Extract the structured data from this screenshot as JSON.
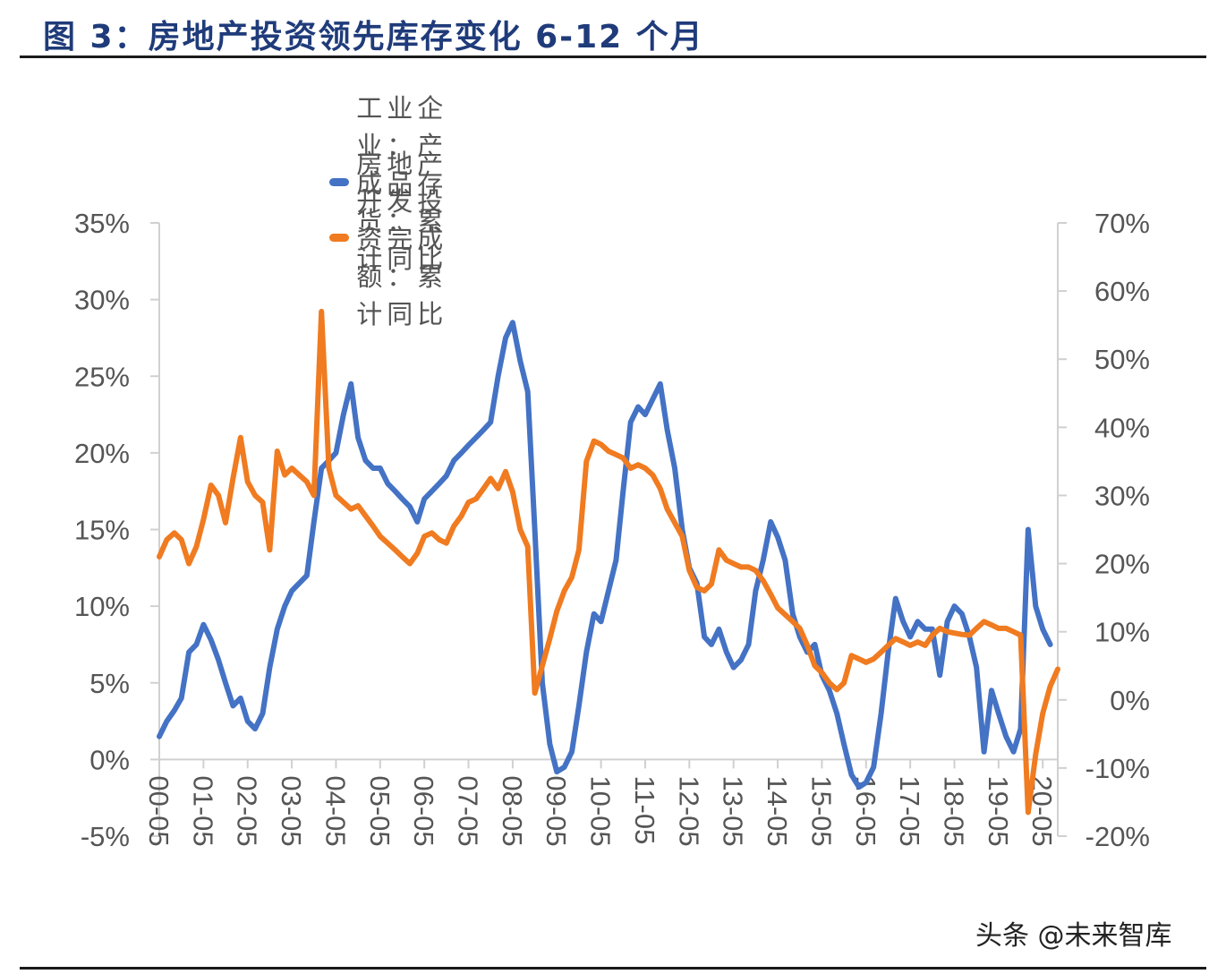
{
  "figure": {
    "title": "图  3：房地产投资领先库存变化 6-12 个月"
  },
  "watermark": "头条 @未来智库",
  "chart_data": {
    "type": "line",
    "title": "图  3：房地产投资领先库存变化 6-12 个月",
    "xlabel": "",
    "ylabel": "",
    "x_tick_labels": [
      "00-05",
      "01-05",
      "02-05",
      "03-05",
      "04-05",
      "05-05",
      "06-05",
      "07-05",
      "08-05",
      "09-05",
      "10-05",
      "11-05",
      "12-05",
      "13-05",
      "14-05",
      "15-05",
      "16-05",
      "17-05",
      "18-05",
      "19-05",
      "20-05"
    ],
    "y_left": {
      "range": [
        -5,
        35
      ],
      "tick_labels": [
        "-5%",
        "0%",
        "5%",
        "10%",
        "15%",
        "20%",
        "25%",
        "30%",
        "35%"
      ]
    },
    "y_right": {
      "range": [
        -20,
        70
      ],
      "tick_labels": [
        "-20%",
        "-10%",
        "0%",
        "10%",
        "20%",
        "30%",
        "40%",
        "50%",
        "60%",
        "70%"
      ]
    },
    "grid": false,
    "legend_position": "top-center",
    "series": [
      {
        "name": "工业企业：产成品存货：累计同比",
        "axis": "left",
        "color": "#4472c4",
        "points": [
          [
            2000.33,
            1.5
          ],
          [
            2000.5,
            2.5
          ],
          [
            2000.67,
            3.2
          ],
          [
            2000.83,
            4.0
          ],
          [
            2001.0,
            7.0
          ],
          [
            2001.17,
            7.5
          ],
          [
            2001.33,
            8.8
          ],
          [
            2001.5,
            7.8
          ],
          [
            2001.67,
            6.5
          ],
          [
            2001.83,
            5.0
          ],
          [
            2002.0,
            3.5
          ],
          [
            2002.17,
            4.0
          ],
          [
            2002.33,
            2.5
          ],
          [
            2002.5,
            2.0
          ],
          [
            2002.67,
            3.0
          ],
          [
            2002.83,
            6.0
          ],
          [
            2003.0,
            8.5
          ],
          [
            2003.17,
            10.0
          ],
          [
            2003.33,
            11.0
          ],
          [
            2003.5,
            11.5
          ],
          [
            2003.67,
            12.0
          ],
          [
            2003.83,
            15.5
          ],
          [
            2004.0,
            19.0
          ],
          [
            2004.17,
            19.5
          ],
          [
            2004.33,
            20.0
          ],
          [
            2004.5,
            22.5
          ],
          [
            2004.67,
            24.5
          ],
          [
            2004.83,
            21.0
          ],
          [
            2005.0,
            19.5
          ],
          [
            2005.17,
            19.0
          ],
          [
            2005.33,
            19.0
          ],
          [
            2005.5,
            18.0
          ],
          [
            2005.67,
            17.5
          ],
          [
            2005.83,
            17.0
          ],
          [
            2006.0,
            16.5
          ],
          [
            2006.17,
            15.5
          ],
          [
            2006.33,
            17.0
          ],
          [
            2006.5,
            17.5
          ],
          [
            2006.67,
            18.0
          ],
          [
            2006.83,
            18.5
          ],
          [
            2007.0,
            19.5
          ],
          [
            2007.17,
            20.0
          ],
          [
            2007.33,
            20.5
          ],
          [
            2007.5,
            21.0
          ],
          [
            2007.67,
            21.5
          ],
          [
            2007.83,
            22.0
          ],
          [
            2008.0,
            25.0
          ],
          [
            2008.17,
            27.5
          ],
          [
            2008.33,
            28.5
          ],
          [
            2008.5,
            26.0
          ],
          [
            2008.67,
            24.0
          ],
          [
            2008.83,
            15.0
          ],
          [
            2009.0,
            5.0
          ],
          [
            2009.17,
            1.0
          ],
          [
            2009.33,
            -0.8
          ],
          [
            2009.5,
            -0.5
          ],
          [
            2009.67,
            0.5
          ],
          [
            2009.83,
            3.5
          ],
          [
            2010.0,
            7.0
          ],
          [
            2010.17,
            9.5
          ],
          [
            2010.33,
            9.0
          ],
          [
            2010.5,
            11.0
          ],
          [
            2010.67,
            13.0
          ],
          [
            2010.83,
            17.5
          ],
          [
            2011.0,
            22.0
          ],
          [
            2011.17,
            23.0
          ],
          [
            2011.33,
            22.5
          ],
          [
            2011.5,
            23.5
          ],
          [
            2011.67,
            24.5
          ],
          [
            2011.83,
            21.5
          ],
          [
            2012.0,
            19.0
          ],
          [
            2012.17,
            15.0
          ],
          [
            2012.33,
            12.5
          ],
          [
            2012.5,
            11.5
          ],
          [
            2012.67,
            8.0
          ],
          [
            2012.83,
            7.5
          ],
          [
            2013.0,
            8.5
          ],
          [
            2013.17,
            7.0
          ],
          [
            2013.33,
            6.0
          ],
          [
            2013.5,
            6.5
          ],
          [
            2013.67,
            7.5
          ],
          [
            2013.83,
            11.0
          ],
          [
            2014.0,
            13.0
          ],
          [
            2014.17,
            15.5
          ],
          [
            2014.33,
            14.5
          ],
          [
            2014.5,
            13.0
          ],
          [
            2014.67,
            9.5
          ],
          [
            2014.83,
            8.0
          ],
          [
            2015.0,
            7.0
          ],
          [
            2015.17,
            7.5
          ],
          [
            2015.33,
            5.5
          ],
          [
            2015.5,
            4.5
          ],
          [
            2015.67,
            3.0
          ],
          [
            2015.83,
            1.0
          ],
          [
            2016.0,
            -1.0
          ],
          [
            2016.17,
            -1.8
          ],
          [
            2016.33,
            -1.5
          ],
          [
            2016.5,
            -0.5
          ],
          [
            2016.67,
            3.0
          ],
          [
            2016.83,
            7.0
          ],
          [
            2017.0,
            10.5
          ],
          [
            2017.17,
            9.0
          ],
          [
            2017.33,
            8.0
          ],
          [
            2017.5,
            9.0
          ],
          [
            2017.67,
            8.5
          ],
          [
            2017.83,
            8.5
          ],
          [
            2018.0,
            5.5
          ],
          [
            2018.17,
            9.0
          ],
          [
            2018.33,
            10.0
          ],
          [
            2018.5,
            9.5
          ],
          [
            2018.67,
            8.0
          ],
          [
            2018.83,
            6.0
          ],
          [
            2019.0,
            0.5
          ],
          [
            2019.17,
            4.5
          ],
          [
            2019.33,
            3.0
          ],
          [
            2019.5,
            1.5
          ],
          [
            2019.67,
            0.5
          ],
          [
            2019.83,
            2.0
          ],
          [
            2020.0,
            15.0
          ],
          [
            2020.17,
            10.0
          ],
          [
            2020.33,
            8.5
          ],
          [
            2020.5,
            7.5
          ]
        ]
      },
      {
        "name": "房地产开发投资完成额：累计同比",
        "axis": "right",
        "color": "#f07b20",
        "points": [
          [
            2000.33,
            21.0
          ],
          [
            2000.5,
            23.5
          ],
          [
            2000.67,
            24.5
          ],
          [
            2000.83,
            23.5
          ],
          [
            2001.0,
            20.0
          ],
          [
            2001.17,
            22.5
          ],
          [
            2001.33,
            26.5
          ],
          [
            2001.5,
            31.5
          ],
          [
            2001.67,
            30.0
          ],
          [
            2001.83,
            26.0
          ],
          [
            2002.0,
            32.5
          ],
          [
            2002.17,
            38.5
          ],
          [
            2002.33,
            32.0
          ],
          [
            2002.5,
            30.0
          ],
          [
            2002.67,
            29.0
          ],
          [
            2002.83,
            22.0
          ],
          [
            2003.0,
            36.5
          ],
          [
            2003.17,
            33.0
          ],
          [
            2003.33,
            34.0
          ],
          [
            2003.5,
            33.0
          ],
          [
            2003.67,
            32.0
          ],
          [
            2003.83,
            30.0
          ],
          [
            2004.0,
            57.0
          ],
          [
            2004.17,
            34.0
          ],
          [
            2004.33,
            30.0
          ],
          [
            2004.5,
            29.0
          ],
          [
            2004.67,
            28.0
          ],
          [
            2004.83,
            28.5
          ],
          [
            2005.0,
            27.0
          ],
          [
            2005.17,
            25.5
          ],
          [
            2005.33,
            24.0
          ],
          [
            2005.5,
            23.0
          ],
          [
            2005.67,
            22.0
          ],
          [
            2005.83,
            21.0
          ],
          [
            2006.0,
            20.0
          ],
          [
            2006.17,
            21.5
          ],
          [
            2006.33,
            24.0
          ],
          [
            2006.5,
            24.5
          ],
          [
            2006.67,
            23.5
          ],
          [
            2006.83,
            23.0
          ],
          [
            2007.0,
            25.5
          ],
          [
            2007.17,
            27.0
          ],
          [
            2007.33,
            29.0
          ],
          [
            2007.5,
            29.5
          ],
          [
            2007.67,
            31.0
          ],
          [
            2007.83,
            32.5
          ],
          [
            2008.0,
            31.0
          ],
          [
            2008.17,
            33.5
          ],
          [
            2008.33,
            30.5
          ],
          [
            2008.5,
            25.0
          ],
          [
            2008.67,
            22.5
          ],
          [
            2008.83,
            1.0
          ],
          [
            2009.0,
            5.0
          ],
          [
            2009.17,
            9.0
          ],
          [
            2009.33,
            13.0
          ],
          [
            2009.5,
            16.0
          ],
          [
            2009.67,
            18.0
          ],
          [
            2009.83,
            22.0
          ],
          [
            2010.0,
            35.0
          ],
          [
            2010.17,
            38.0
          ],
          [
            2010.33,
            37.5
          ],
          [
            2010.5,
            36.5
          ],
          [
            2010.67,
            36.0
          ],
          [
            2010.83,
            35.5
          ],
          [
            2011.0,
            34.0
          ],
          [
            2011.17,
            34.5
          ],
          [
            2011.33,
            34.0
          ],
          [
            2011.5,
            33.0
          ],
          [
            2011.67,
            31.0
          ],
          [
            2011.83,
            28.0
          ],
          [
            2012.0,
            26.0
          ],
          [
            2012.17,
            24.0
          ],
          [
            2012.33,
            19.0
          ],
          [
            2012.5,
            16.5
          ],
          [
            2012.67,
            16.0
          ],
          [
            2012.83,
            17.0
          ],
          [
            2013.0,
            22.0
          ],
          [
            2013.17,
            20.5
          ],
          [
            2013.33,
            20.0
          ],
          [
            2013.5,
            19.5
          ],
          [
            2013.67,
            19.5
          ],
          [
            2013.83,
            19.0
          ],
          [
            2014.0,
            17.5
          ],
          [
            2014.17,
            15.5
          ],
          [
            2014.33,
            13.5
          ],
          [
            2014.5,
            12.5
          ],
          [
            2014.67,
            11.5
          ],
          [
            2014.83,
            10.5
          ],
          [
            2015.0,
            8.0
          ],
          [
            2015.17,
            5.0
          ],
          [
            2015.33,
            4.0
          ],
          [
            2015.5,
            2.5
          ],
          [
            2015.67,
            1.5
          ],
          [
            2015.83,
            2.5
          ],
          [
            2016.0,
            6.5
          ],
          [
            2016.17,
            6.0
          ],
          [
            2016.33,
            5.5
          ],
          [
            2016.5,
            6.0
          ],
          [
            2016.67,
            7.0
          ],
          [
            2016.83,
            8.0
          ],
          [
            2017.0,
            9.0
          ],
          [
            2017.17,
            8.5
          ],
          [
            2017.33,
            8.0
          ],
          [
            2017.5,
            8.5
          ],
          [
            2017.67,
            8.0
          ],
          [
            2017.83,
            9.5
          ],
          [
            2018.0,
            10.5
          ],
          [
            2018.17,
            10.0
          ],
          [
            2018.33,
            9.8
          ],
          [
            2018.5,
            9.6
          ],
          [
            2018.67,
            9.5
          ],
          [
            2018.83,
            10.5
          ],
          [
            2019.0,
            11.5
          ],
          [
            2019.17,
            11.0
          ],
          [
            2019.33,
            10.5
          ],
          [
            2019.5,
            10.5
          ],
          [
            2019.67,
            10.0
          ],
          [
            2019.83,
            9.5
          ],
          [
            2020.0,
            -16.5
          ],
          [
            2020.17,
            -8.0
          ],
          [
            2020.33,
            -2.0
          ],
          [
            2020.5,
            2.0
          ],
          [
            2020.67,
            4.5
          ]
        ]
      }
    ]
  }
}
